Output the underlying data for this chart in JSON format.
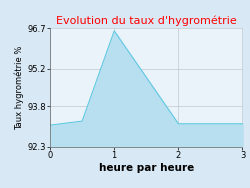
{
  "title": "Evolution du taux d'hygrométrie",
  "title_color": "#ff0000",
  "xlabel": "heure par heure",
  "ylabel": "Taux hygrométrie %",
  "x": [
    0,
    0.5,
    1,
    2,
    2,
    3
  ],
  "y": [
    93.1,
    93.25,
    96.6,
    93.15,
    93.15,
    93.15
  ],
  "fill_color": "#b8dff0",
  "fill_alpha": 1.0,
  "line_color": "#5bc8e0",
  "line_width": 0.7,
  "ylim": [
    92.3,
    96.7
  ],
  "xlim": [
    0,
    3
  ],
  "yticks": [
    92.3,
    93.8,
    95.2,
    96.7
  ],
  "xticks": [
    0,
    1,
    2,
    3
  ],
  "bg_color": "#d8e8f4",
  "plot_bg_color": "#eaf3fa",
  "grid_color": "#c0c8d0",
  "title_fontsize": 8,
  "xlabel_fontsize": 7.5,
  "ylabel_fontsize": 6,
  "tick_fontsize": 6
}
